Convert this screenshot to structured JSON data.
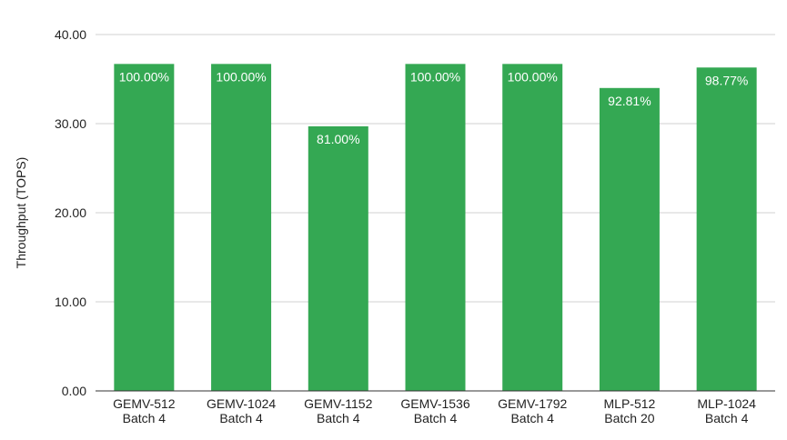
{
  "chart_data": {
    "type": "bar",
    "title": "",
    "xlabel": "",
    "ylabel": "Throughput (TOPS)",
    "ylim": [
      0,
      40
    ],
    "y_ticks": [
      "0.00",
      "10.00",
      "20.00",
      "30.00",
      "40.00"
    ],
    "grid": true,
    "legend": "none",
    "categories": [
      [
        "GEMV-512",
        "Batch 4"
      ],
      [
        "GEMV-1024",
        "Batch 4"
      ],
      [
        "GEMV-1152",
        "Batch 4"
      ],
      [
        "GEMV-1536",
        "Batch 4"
      ],
      [
        "GEMV-1792",
        "Batch 4"
      ],
      [
        "MLP-512",
        "Batch 20"
      ],
      [
        "MLP-1024",
        "Batch 4"
      ]
    ],
    "values": [
      36.7,
      36.7,
      29.7,
      36.7,
      36.7,
      34.0,
      36.3
    ],
    "data_labels": [
      "100.00%",
      "100.00%",
      "81.00%",
      "100.00%",
      "100.00%",
      "92.81%",
      "98.77%"
    ],
    "colors": {
      "bar": "#34a853",
      "grid": "#d0d0d0",
      "axis": "#333333",
      "data_label": "#ffffff"
    }
  }
}
